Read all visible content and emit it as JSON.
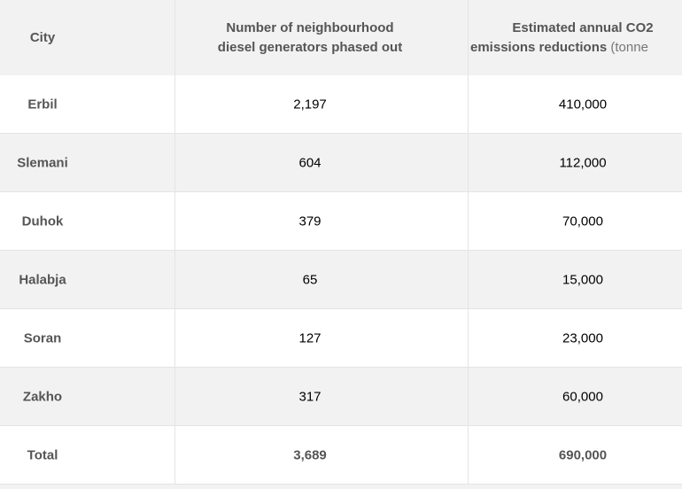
{
  "table": {
    "header": [
      {
        "lines": [
          "City"
        ]
      },
      {
        "lines": [
          "Number of neighbourhood",
          "diesel generators phased out"
        ]
      },
      {
        "lines": [
          "Estimated annual CO2",
          "emissions reductions"
        ],
        "unit": "(tonne"
      }
    ],
    "rows": [
      [
        "Erbil",
        "2,197",
        "410,000"
      ],
      [
        "Slemani",
        "604",
        "112,000"
      ],
      [
        "Duhok",
        "379",
        "70,000"
      ],
      [
        "Halabja",
        "65",
        "15,000"
      ],
      [
        "Soran",
        "127",
        "23,000"
      ],
      [
        "Zakho",
        "317",
        "60,000"
      ],
      [
        "Total",
        "3,689",
        "690,000"
      ]
    ]
  }
}
